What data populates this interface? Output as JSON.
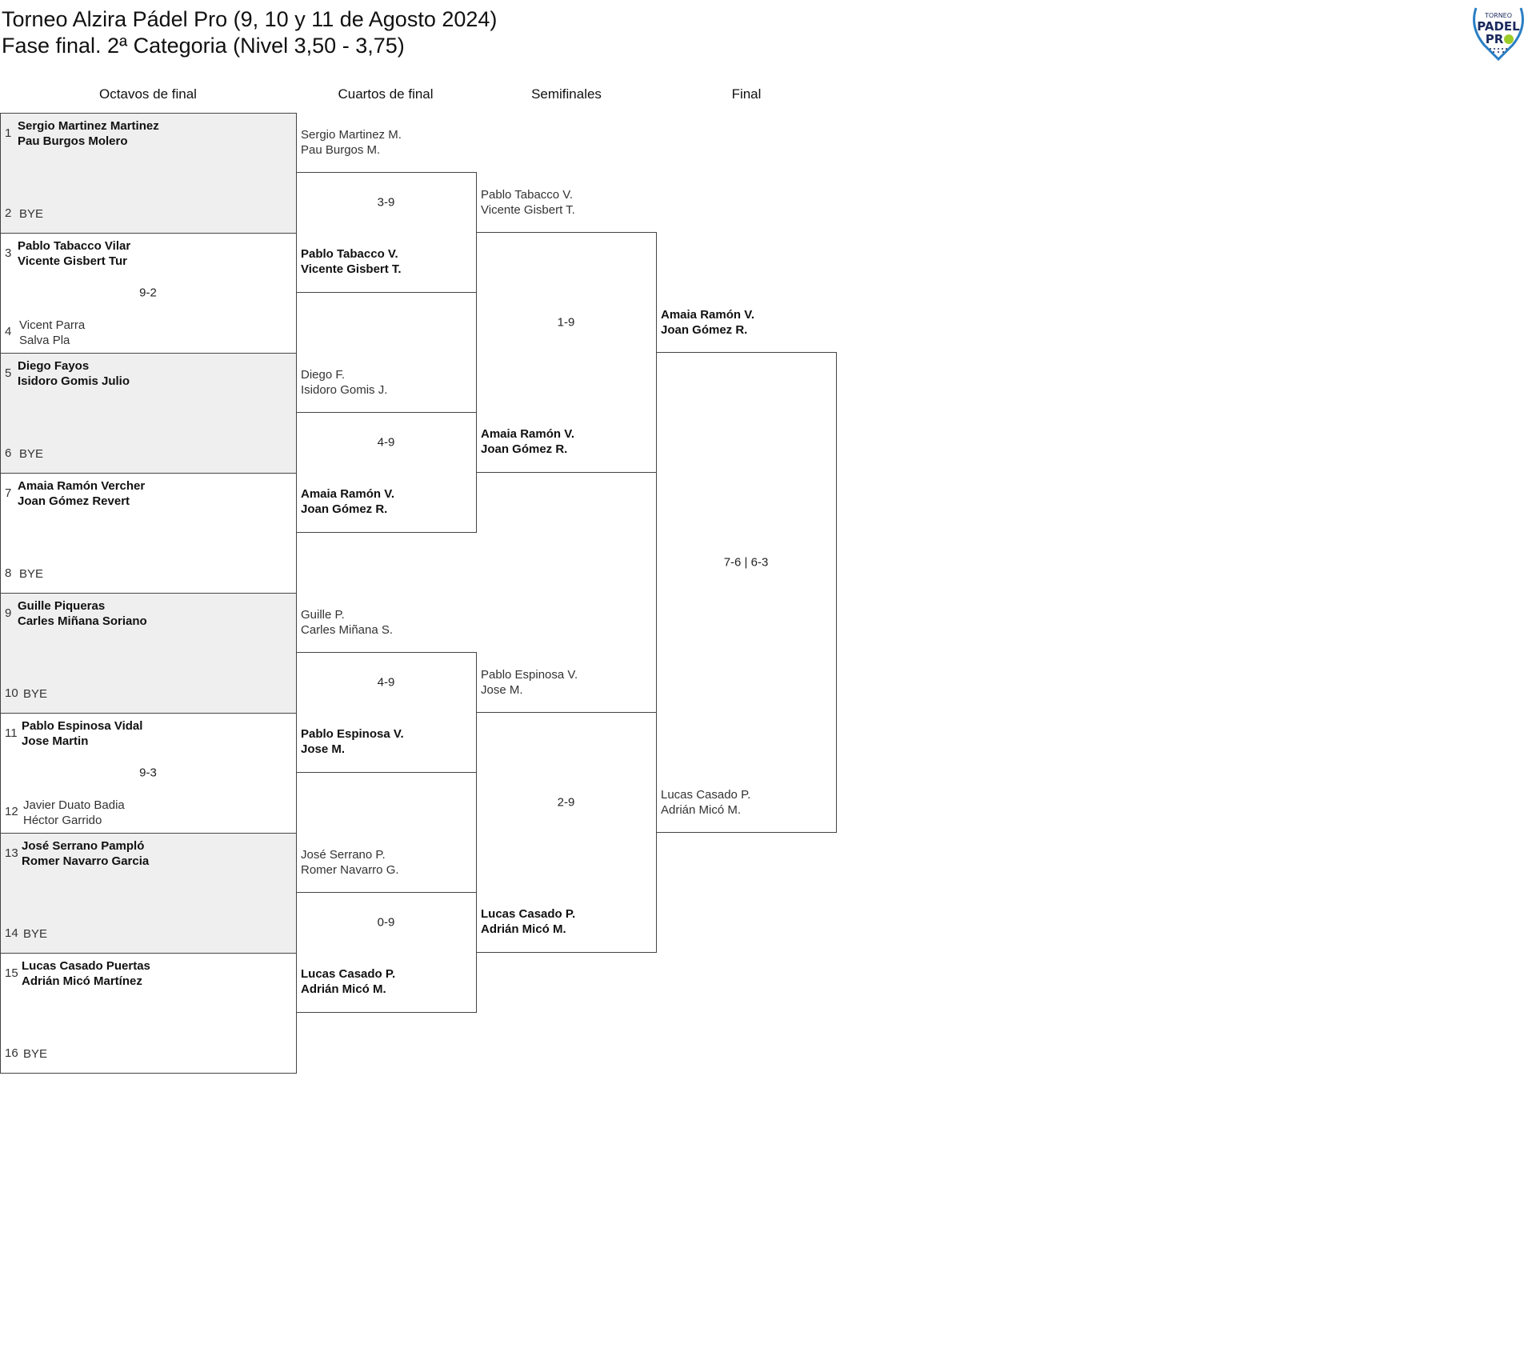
{
  "header": {
    "title": "Torneo Alzira Pádel Pro (9, 10 y 11 de Agosto 2024)",
    "subtitle": "Fase final. 2ª Categoria (Nivel 3,50 - 3,75)",
    "logo_text": "TORNEO PADEL PRO"
  },
  "rounds": [
    "Octavos de final",
    "Cuartos de final",
    "Semifinales",
    "Final"
  ],
  "octavos": [
    {
      "seed_top": "1",
      "top": [
        "Sergio Martinez Martinez",
        "Pau Burgos Molero"
      ],
      "seed_bottom": "2",
      "bottom": [
        "BYE"
      ],
      "score": "",
      "winner": "top"
    },
    {
      "seed_top": "3",
      "top": [
        "Pablo Tabacco Vilar",
        "Vicente Gisbert Tur"
      ],
      "seed_bottom": "4",
      "bottom": [
        "Vicent Parra",
        "Salva Pla"
      ],
      "score": "9-2",
      "winner": "top"
    },
    {
      "seed_top": "5",
      "top": [
        "Diego Fayos",
        "Isidoro Gomis Julio"
      ],
      "seed_bottom": "6",
      "bottom": [
        "BYE"
      ],
      "score": "",
      "winner": "top"
    },
    {
      "seed_top": "7",
      "top": [
        "Amaia Ramón Vercher",
        "Joan Gómez Revert"
      ],
      "seed_bottom": "8",
      "bottom": [
        "BYE"
      ],
      "score": "",
      "winner": "top"
    },
    {
      "seed_top": "9",
      "top": [
        "Guille Piqueras",
        "Carles Miñana Soriano"
      ],
      "seed_bottom": "10",
      "bottom": [
        "BYE"
      ],
      "score": "",
      "winner": "top"
    },
    {
      "seed_top": "11",
      "top": [
        "Pablo Espinosa Vidal",
        "Jose Martin"
      ],
      "seed_bottom": "12",
      "bottom": [
        "Javier Duato Badia",
        "Héctor Garrido"
      ],
      "score": "9-3",
      "winner": "top"
    },
    {
      "seed_top": "13",
      "top": [
        "José Serrano Pampló",
        "Romer Navarro Garcia"
      ],
      "seed_bottom": "14",
      "bottom": [
        "BYE"
      ],
      "score": "",
      "winner": "top"
    },
    {
      "seed_top": "15",
      "top": [
        "Lucas Casado Puertas",
        "Adrián Micó Martínez"
      ],
      "seed_bottom": "16",
      "bottom": [
        "BYE"
      ],
      "score": "",
      "winner": "top"
    }
  ],
  "cuartos": [
    {
      "top": [
        "Sergio Martinez M.",
        "Pau Burgos M."
      ],
      "bottom": [
        "Pablo Tabacco V.",
        "Vicente Gisbert T."
      ],
      "score": "3-9",
      "winner": "bottom"
    },
    {
      "top": [
        "Diego F.",
        "Isidoro Gomis J."
      ],
      "bottom": [
        "Amaia Ramón V.",
        "Joan Gómez R."
      ],
      "score": "4-9",
      "winner": "bottom"
    },
    {
      "top": [
        "Guille P.",
        "Carles Miñana S."
      ],
      "bottom": [
        "Pablo Espinosa V.",
        "Jose M."
      ],
      "score": "4-9",
      "winner": "bottom"
    },
    {
      "top": [
        "José Serrano P.",
        "Romer Navarro G."
      ],
      "bottom": [
        "Lucas Casado P.",
        "Adrián Micó M."
      ],
      "score": "0-9",
      "winner": "bottom"
    }
  ],
  "semis": [
    {
      "top": [
        "Pablo Tabacco V.",
        "Vicente Gisbert T."
      ],
      "bottom": [
        "Amaia Ramón V.",
        "Joan Gómez R."
      ],
      "score": "1-9",
      "winner": "bottom"
    },
    {
      "top": [
        "Pablo Espinosa V.",
        "Jose M."
      ],
      "bottom": [
        "Lucas Casado P.",
        "Adrián Micó M."
      ],
      "score": "2-9",
      "winner": "bottom"
    }
  ],
  "final": [
    {
      "top": [
        "Amaia Ramón V.",
        "Joan Gómez R."
      ],
      "bottom": [
        "Lucas Casado P.",
        "Adrián Micó M."
      ],
      "score": "7-6 | 6-3",
      "winner": "top"
    }
  ],
  "colors": {
    "shade": "#efefef",
    "border": "#444444",
    "logo_blue": "#1b2a5e",
    "logo_green": "#9ccc2a"
  }
}
